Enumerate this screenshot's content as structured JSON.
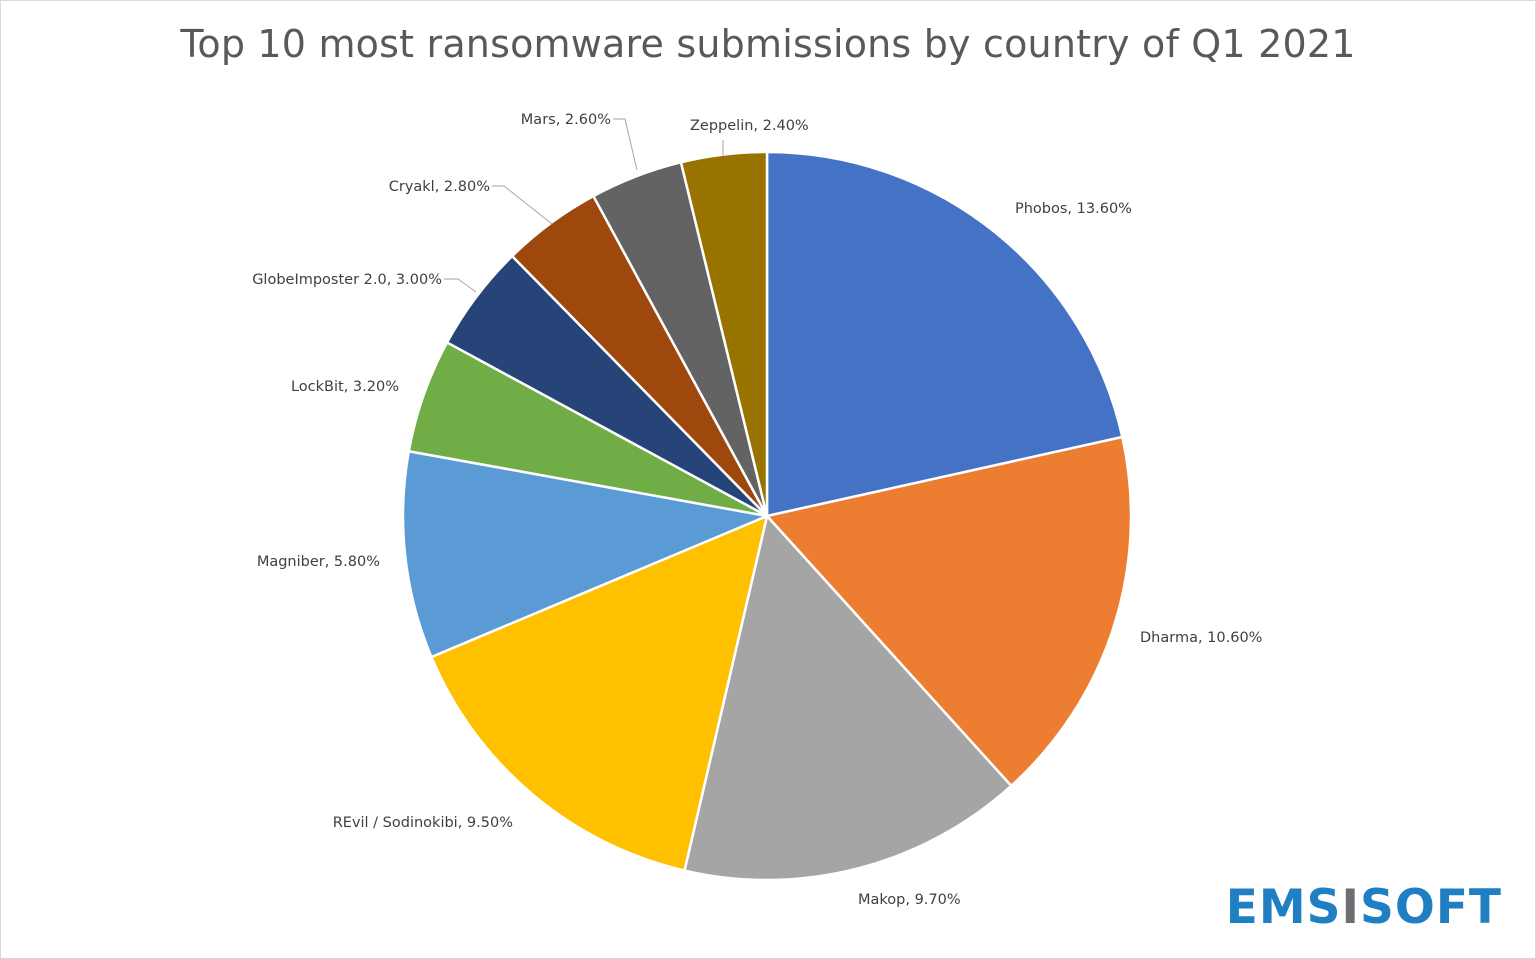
{
  "chart_data": {
    "type": "pie",
    "title": "Top 10 most ransomware submissions by country of Q1 2021",
    "categories": [
      "Phobos",
      "Dharma",
      "Makop",
      "REvil / Sodinokibi",
      "Magniber",
      "LockBit",
      "GlobeImposter 2.0",
      "Cryakl",
      "Mars",
      "Zeppelin"
    ],
    "values": [
      13.6,
      10.6,
      9.7,
      9.5,
      5.8,
      3.2,
      3.0,
      2.8,
      2.6,
      2.4
    ],
    "labels": [
      "Phobos, 13.60%",
      "Dharma, 10.60%",
      "Makop, 9.70%",
      "REvil / Sodinokibi, 9.50%",
      "Magniber, 5.80%",
      "LockBit, 3.20%",
      "GlobeImposter 2.0, 3.00%",
      "Cryakl, 2.80%",
      "Mars, 2.60%",
      "Zeppelin, 2.40%"
    ],
    "colors": [
      "#4472c4",
      "#ed7d31",
      "#a5a5a5",
      "#ffc000",
      "#5b9bd5",
      "#70ad47",
      "#264478",
      "#9e480e",
      "#636363",
      "#997300"
    ],
    "legend": "none"
  },
  "logo": {
    "part1": "EMS",
    "part2": "I",
    "part3": "SOFT"
  }
}
